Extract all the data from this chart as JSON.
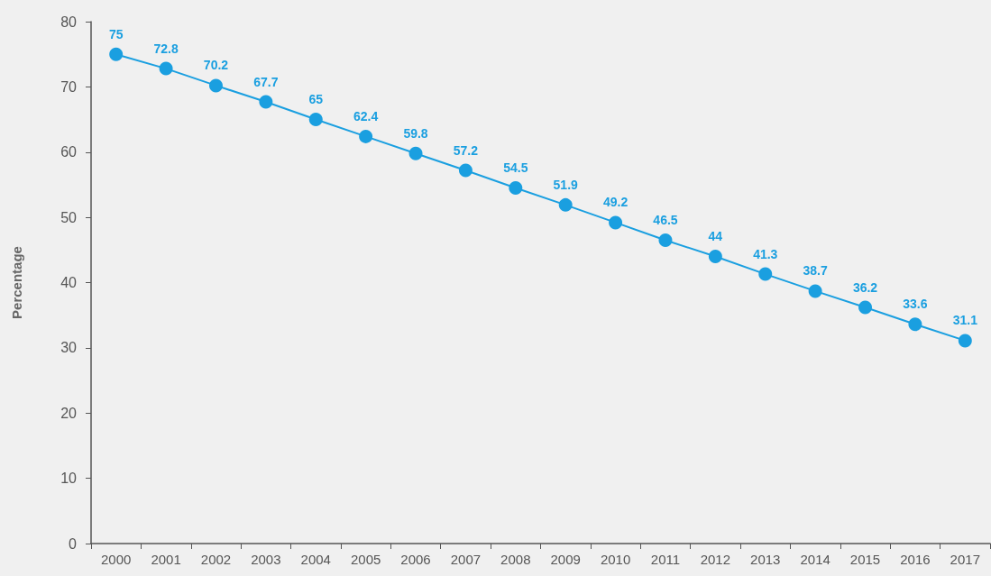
{
  "chart_data": {
    "type": "line",
    "ylabel": "Percentage",
    "categories": [
      "2000",
      "2001",
      "2002",
      "2003",
      "2004",
      "2005",
      "2006",
      "2007",
      "2008",
      "2009",
      "2010",
      "2011",
      "2012",
      "2013",
      "2014",
      "2015",
      "2016",
      "2017"
    ],
    "series": [
      {
        "color": "#1a9fe0",
        "values": [
          75,
          72.8,
          70.2,
          67.7,
          65,
          62.4,
          59.8,
          57.2,
          54.5,
          51.9,
          49.2,
          46.5,
          44,
          41.3,
          38.7,
          36.2,
          33.6,
          31.1
        ]
      }
    ],
    "ylim": [
      0,
      80
    ],
    "yticks": [
      0,
      10,
      20,
      30,
      40,
      50,
      60,
      70,
      80
    ],
    "grid": false,
    "marker": "circle",
    "line_style": "solid",
    "data_labels": true
  }
}
